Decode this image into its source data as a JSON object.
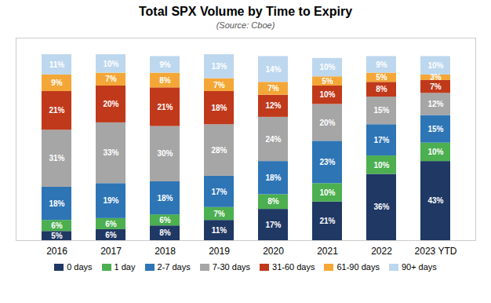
{
  "chart_data": {
    "type": "bar",
    "title": "Total SPX Volume by Time to Expiry",
    "subtitle": "(Source: Cboe)",
    "categories": [
      "2016",
      "2017",
      "2018",
      "2019",
      "2020",
      "2021",
      "2022",
      "2023 YTD"
    ],
    "series": [
      {
        "name": "0 days",
        "color": "#1f3864",
        "values": [
          5,
          6,
          8,
          11,
          17,
          21,
          36,
          43
        ],
        "value_labels": [
          "5%",
          "6%",
          "8%",
          "11%",
          "17%",
          "21%",
          "36%",
          "43%"
        ]
      },
      {
        "name": "1 day",
        "color": "#4caf50",
        "values": [
          6,
          6,
          6,
          7,
          8,
          10,
          10,
          10
        ],
        "value_labels": [
          "6%",
          "6%",
          "6%",
          "7%",
          "8%",
          "10%",
          "10%",
          "10%"
        ]
      },
      {
        "name": "2-7 days",
        "color": "#2e75b6",
        "values": [
          18,
          19,
          18,
          17,
          18,
          23,
          17,
          15
        ],
        "value_labels": [
          "18%",
          "19%",
          "18%",
          "17%",
          "18%",
          "23%",
          "17%",
          "15%"
        ]
      },
      {
        "name": "7-30 days",
        "color": "#a6a6a6",
        "values": [
          31,
          33,
          30,
          28,
          24,
          20,
          15,
          12
        ],
        "value_labels": [
          "31%",
          "33%",
          "30%",
          "28%",
          "24%",
          "20%",
          "15%",
          "12%"
        ]
      },
      {
        "name": "31-60 days",
        "color": "#c0391b",
        "values": [
          21,
          20,
          21,
          18,
          12,
          10,
          8,
          7
        ],
        "value_labels": [
          "21%",
          "20%",
          "21%",
          "18%",
          "12%",
          "10%",
          "8%",
          "7%"
        ]
      },
      {
        "name": "61-90 days",
        "color": "#f4a737",
        "values": [
          9,
          7,
          8,
          7,
          7,
          5,
          5,
          3
        ],
        "value_labels": [
          "9%",
          "7%",
          "8%",
          "7%",
          "7%",
          "5%",
          "5%",
          "3%"
        ]
      },
      {
        "name": "90+ days",
        "color": "#bdd7ee",
        "values": [
          11,
          10,
          9,
          13,
          14,
          10,
          9,
          10
        ],
        "value_labels": [
          "11%",
          "10%",
          "9%",
          "13%",
          "14%",
          "10%",
          "9%",
          "10%"
        ]
      }
    ],
    "ylim": [
      0,
      110
    ],
    "stacked": true,
    "data_labels": true,
    "tick_labels": "x",
    "legend": "bottom",
    "grid": false
  }
}
